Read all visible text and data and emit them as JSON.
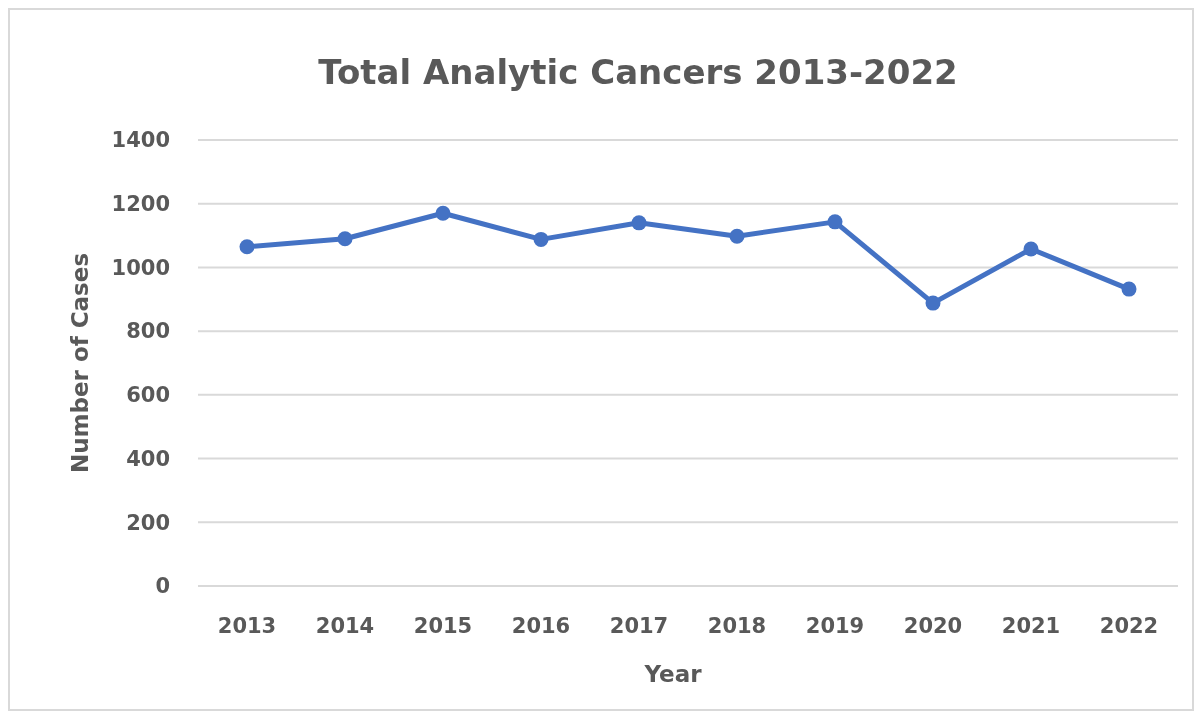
{
  "chart_data": {
    "type": "line",
    "title": "Total Analytic Cancers 2013-2022",
    "xlabel": "Year",
    "ylabel": "Number of Cases",
    "categories": [
      "2013",
      "2014",
      "2015",
      "2016",
      "2017",
      "2018",
      "2019",
      "2020",
      "2021",
      "2022"
    ],
    "series": [
      {
        "color": "#4472c4",
        "values": [
          1065,
          1090,
          1170,
          1088,
          1140,
          1098,
          1143,
          888,
          1058,
          932
        ]
      }
    ],
    "ylim": [
      0,
      1400
    ],
    "yticks": [
      0,
      200,
      400,
      600,
      800,
      1000,
      1200,
      1400
    ],
    "grid": "y",
    "marker": "circle",
    "line_style": "solid"
  }
}
